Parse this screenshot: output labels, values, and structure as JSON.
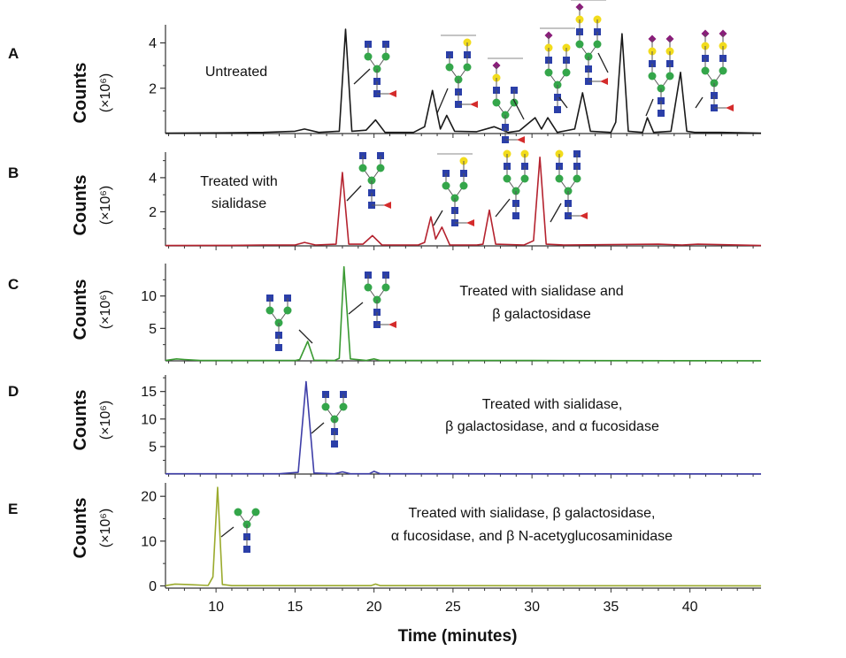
{
  "chart_data": [
    {
      "type": "line",
      "panel": "A",
      "annotation": [
        "Untreated"
      ],
      "ylabel": "Counts",
      "yunit": "(×10⁶)",
      "xlim": [
        6.8,
        44.5
      ],
      "ylim": [
        0,
        4.8
      ],
      "yticks": [
        2,
        4
      ],
      "color": "#1a1a1a",
      "series": [
        {
          "x": [
            6.8,
            10.5,
            13.0,
            15.0,
            15.6,
            16.5,
            17.8,
            18.2,
            18.6,
            19.5,
            20.1,
            20.7,
            22.5,
            23.2,
            23.7,
            24.2,
            24.6,
            25.1,
            26.5,
            27.6,
            28.5,
            29.2,
            30.2,
            30.6,
            31.0,
            31.6,
            32.7,
            33.2,
            33.7,
            35.0,
            35.3,
            35.7,
            36.1,
            37.0,
            37.3,
            37.7,
            38.8,
            39.4,
            39.8,
            40.3,
            42.0,
            44.5
          ],
          "y": [
            0.02,
            0.03,
            0.05,
            0.1,
            0.2,
            0.05,
            0.1,
            4.6,
            0.1,
            0.15,
            0.6,
            0.05,
            0.05,
            0.3,
            1.9,
            0.2,
            0.8,
            0.1,
            0.08,
            0.3,
            0.05,
            0.12,
            0.7,
            0.2,
            0.7,
            0.05,
            0.2,
            1.8,
            0.1,
            0.05,
            0.5,
            4.4,
            0.1,
            0.05,
            0.7,
            0.05,
            0.1,
            2.7,
            0.1,
            0.05,
            0.05,
            0.02
          ]
        }
      ]
    },
    {
      "type": "line",
      "panel": "B",
      "annotation": [
        "Treated with",
        "sialidase"
      ],
      "ylabel": "Counts",
      "yunit": "(×10⁶)",
      "xlim": [
        6.8,
        44.5
      ],
      "ylim": [
        0,
        5.5
      ],
      "yticks": [
        2,
        4
      ],
      "color": "#b5232f",
      "series": [
        {
          "x": [
            6.8,
            11.0,
            13.0,
            15.0,
            15.6,
            16.3,
            17.6,
            18.0,
            18.4,
            19.3,
            19.9,
            20.5,
            22.8,
            23.2,
            23.6,
            23.9,
            24.3,
            24.8,
            26.5,
            26.9,
            27.3,
            27.7,
            29.5,
            30.1,
            30.5,
            30.9,
            32.0,
            38.0,
            39.5,
            40.5,
            44.5
          ],
          "y": [
            0.02,
            0.03,
            0.05,
            0.05,
            0.2,
            0.05,
            0.1,
            4.3,
            0.1,
            0.1,
            0.6,
            0.05,
            0.05,
            0.2,
            1.7,
            0.4,
            1.1,
            0.05,
            0.05,
            0.1,
            2.1,
            0.1,
            0.05,
            0.3,
            5.2,
            0.1,
            0.05,
            0.1,
            0.05,
            0.1,
            0.02
          ]
        }
      ]
    },
    {
      "type": "line",
      "panel": "C",
      "annotation": [
        "Treated with sialidase and",
        "β galactosidase"
      ],
      "ylabel": "Counts",
      "yunit": "(×10⁶)",
      "xlim": [
        6.8,
        44.5
      ],
      "ylim": [
        0,
        15
      ],
      "yticks": [
        5,
        10
      ],
      "color": "#3a9a32",
      "series": [
        {
          "x": [
            6.8,
            7.5,
            8.0,
            9.0,
            13.0,
            15.0,
            15.3,
            15.8,
            16.2,
            17.5,
            17.8,
            18.1,
            18.5,
            19.5,
            20.0,
            20.4,
            23.0,
            30.0,
            44.5
          ],
          "y": [
            0.05,
            0.3,
            0.2,
            0.05,
            0.05,
            0.05,
            0.2,
            3.0,
            0.1,
            0.05,
            0.4,
            14.5,
            0.3,
            0.05,
            0.3,
            0.05,
            0.05,
            0.05,
            0.02
          ]
        }
      ]
    },
    {
      "type": "line",
      "panel": "D",
      "annotation": [
        "Treated with sialidase,",
        "β galactosidase, and α fucosidase"
      ],
      "ylabel": "Counts",
      "yunit": "(×10⁶)",
      "xlim": [
        6.8,
        44.5
      ],
      "ylim": [
        0,
        18
      ],
      "yticks": [
        5,
        10,
        15
      ],
      "color": "#3e3ea8",
      "series": [
        {
          "x": [
            6.8,
            12.0,
            14.0,
            15.2,
            15.7,
            16.2,
            17.5,
            18.0,
            18.5,
            19.7,
            20.0,
            20.4,
            44.5
          ],
          "y": [
            0.05,
            0.05,
            0.05,
            0.3,
            16.8,
            0.2,
            0.05,
            0.4,
            0.05,
            0.05,
            0.5,
            0.05,
            0.02
          ]
        }
      ]
    },
    {
      "type": "line",
      "panel": "E",
      "annotation": [
        "Treated with sialidase, β galactosidase,",
        "α fucosidase, and β N-acetyglucosaminidase"
      ],
      "ylabel": "Counts",
      "yunit": "(×10⁶)",
      "xlim": [
        6.8,
        44.5
      ],
      "ylim": [
        -0.5,
        23
      ],
      "yticks": [
        0,
        10,
        20
      ],
      "color": "#9aaa2c",
      "xlabel": "Time (minutes)",
      "xticks": [
        10,
        15,
        20,
        25,
        30,
        35,
        40
      ],
      "series": [
        {
          "x": [
            6.8,
            7.4,
            8.2,
            9.5,
            9.8,
            10.1,
            10.4,
            11.0,
            19.8,
            20.1,
            20.4,
            44.5
          ],
          "y": [
            0.05,
            0.4,
            0.3,
            0.1,
            2.0,
            22.0,
            0.3,
            0.05,
            0.05,
            0.4,
            0.05,
            0.02
          ]
        }
      ]
    }
  ]
}
